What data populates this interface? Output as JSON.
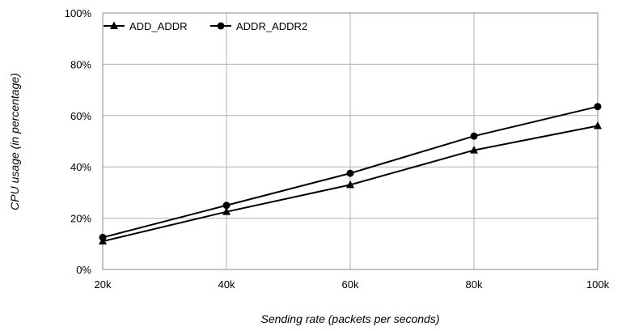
{
  "chart_data": {
    "type": "line",
    "title": "",
    "xlabel": "Sending rate (packets per seconds)",
    "ylabel": "CPU usage (in percentage)",
    "categories": [
      "20k",
      "40k",
      "60k",
      "80k",
      "100k"
    ],
    "x": [
      20,
      40,
      60,
      80,
      100
    ],
    "ylim": [
      0,
      100
    ],
    "yticks": [
      0,
      20,
      40,
      60,
      80,
      100
    ],
    "ytick_labels": [
      "0%",
      "20%",
      "40%",
      "60%",
      "80%",
      "100%"
    ],
    "grid": true,
    "legend_position": "top-left",
    "series": [
      {
        "name": "ADD_ADDR",
        "marker": "triangle",
        "color": "#000000",
        "values": [
          11,
          22.5,
          33,
          46.5,
          56
        ]
      },
      {
        "name": "ADDR_ADDR2",
        "marker": "circle",
        "color": "#000000",
        "values": [
          12.5,
          25,
          37.5,
          52,
          63.5
        ]
      }
    ]
  }
}
